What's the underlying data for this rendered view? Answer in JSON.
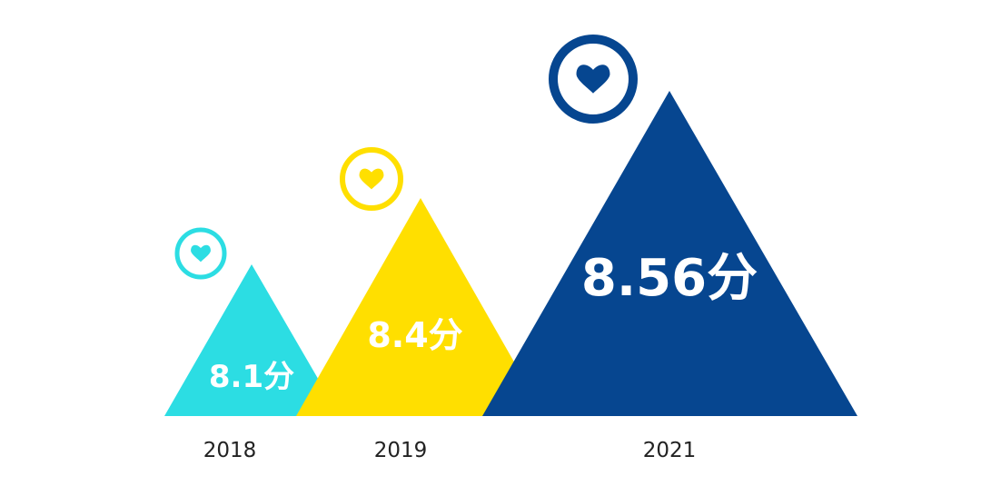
{
  "chart_data": {
    "type": "bar",
    "categories": [
      "2018",
      "2019",
      "2021"
    ],
    "values": [
      8.1,
      8.4,
      8.56
    ],
    "value_labels": [
      "8.1分",
      "8.4分",
      "8.56分"
    ],
    "colors": [
      "#2CDDE3",
      "#FFDF00",
      "#064690"
    ],
    "icons": [
      "heart-icon",
      "heart-icon",
      "heart-icon"
    ],
    "grid": false,
    "legend": "none"
  }
}
